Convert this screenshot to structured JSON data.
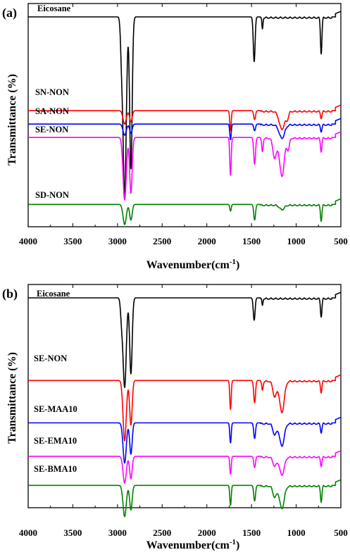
{
  "chart_data": [
    {
      "type": "line",
      "panel_label": "(a)",
      "xlabel": "Wavenumber(cm",
      "xlabel_sup": "-1",
      "xlabel_end": ")",
      "ylabel": "Transmittance (%)",
      "xlim": [
        4000,
        500
      ],
      "x_ticks": [
        "4000",
        "3500",
        "3000",
        "2500",
        "2000",
        "1500",
        "1000",
        "500"
      ],
      "series": [
        {
          "name": "Eicosane",
          "color": "#000000",
          "offset": 0.94,
          "bands": [
            [
              2920,
              0.8,
              18
            ],
            [
              2850,
              0.68,
              14
            ],
            [
              2955,
              0.15,
              12
            ],
            [
              1470,
              0.2,
              10
            ],
            [
              1378,
              0.05,
              6
            ],
            [
              720,
              0.16,
              8
            ]
          ]
        },
        {
          "name": "SN-NON",
          "color": "#ff0000",
          "offset": 0.52,
          "bands": [
            [
              2920,
              0.06,
              18
            ],
            [
              2850,
              0.05,
              14
            ],
            [
              1735,
              0.09,
              8
            ],
            [
              1465,
              0.04,
              10
            ],
            [
              1160,
              0.08,
              30
            ],
            [
              1100,
              0.03,
              15
            ],
            [
              720,
              0.03,
              8
            ]
          ]
        },
        {
          "name": "SA-NON",
          "color": "#0000ff",
          "offset": 0.46,
          "bands": [
            [
              2920,
              0.05,
              18
            ],
            [
              2850,
              0.04,
              14
            ],
            [
              1735,
              0.07,
              8
            ],
            [
              1465,
              0.03,
              10
            ],
            [
              1160,
              0.06,
              30
            ],
            [
              720,
              0.03,
              8
            ]
          ]
        },
        {
          "name": "SE-NON",
          "color": "#ff00ff",
          "offset": 0.4,
          "bands": [
            [
              2920,
              0.28,
              18
            ],
            [
              2850,
              0.25,
              14
            ],
            [
              1735,
              0.17,
              8
            ],
            [
              1465,
              0.12,
              10
            ],
            [
              1378,
              0.06,
              8
            ],
            [
              1240,
              0.09,
              20
            ],
            [
              1160,
              0.17,
              26
            ],
            [
              1090,
              0.05,
              14
            ],
            [
              720,
              0.06,
              8
            ]
          ]
        },
        {
          "name": "SD-NON",
          "color": "#008000",
          "offset": 0.1,
          "bands": [
            [
              2920,
              0.09,
              18
            ],
            [
              2850,
              0.07,
              14
            ],
            [
              1735,
              0.03,
              8
            ],
            [
              1465,
              0.07,
              10
            ],
            [
              1160,
              0.02,
              26
            ],
            [
              720,
              0.07,
              8
            ]
          ]
        }
      ]
    },
    {
      "type": "line",
      "panel_label": "(b)",
      "xlabel": "Wavenumber(cm",
      "xlabel_sup": "-1",
      "xlabel_end": ")",
      "ylabel": "Transmittance (%)",
      "xlim": [
        4000,
        500
      ],
      "x_ticks": [
        "4000",
        "3500",
        "3000",
        "2500",
        "2000",
        "1500",
        "1000",
        "500"
      ],
      "series": [
        {
          "name": "Eicosane",
          "color": "#000000",
          "offset": 0.94,
          "bands": [
            [
              2920,
              0.4,
              18
            ],
            [
              2850,
              0.34,
              14
            ],
            [
              2955,
              0.08,
              12
            ],
            [
              1470,
              0.1,
              10
            ],
            [
              1378,
              0.03,
              6
            ],
            [
              720,
              0.08,
              8
            ]
          ]
        },
        {
          "name": "SE-NON",
          "color": "#ff0000",
          "offset": 0.57,
          "bands": [
            [
              2920,
              0.27,
              18
            ],
            [
              2850,
              0.2,
              14
            ],
            [
              1735,
              0.13,
              8
            ],
            [
              1465,
              0.1,
              10
            ],
            [
              1378,
              0.04,
              8
            ],
            [
              1240,
              0.07,
              20
            ],
            [
              1160,
              0.14,
              26
            ],
            [
              720,
              0.05,
              8
            ]
          ]
        },
        {
          "name": "SE-MAA10",
          "color": "#0000ff",
          "offset": 0.38,
          "bands": [
            [
              2920,
              0.18,
              18
            ],
            [
              2850,
              0.14,
              14
            ],
            [
              1735,
              0.09,
              8
            ],
            [
              1465,
              0.07,
              10
            ],
            [
              1240,
              0.05,
              20
            ],
            [
              1160,
              0.1,
              26
            ],
            [
              720,
              0.04,
              8
            ]
          ]
        },
        {
          "name": "SE-EMA10",
          "color": "#ff00ff",
          "offset": 0.23,
          "bands": [
            [
              2920,
              0.12,
              18
            ],
            [
              2850,
              0.1,
              14
            ],
            [
              1735,
              0.08,
              8
            ],
            [
              1465,
              0.05,
              10
            ],
            [
              1240,
              0.04,
              20
            ],
            [
              1160,
              0.08,
              26
            ],
            [
              720,
              0.04,
              8
            ]
          ]
        },
        {
          "name": "SE-BMA10",
          "color": "#008000",
          "offset": 0.1,
          "bands": [
            [
              2920,
              0.14,
              18
            ],
            [
              2850,
              0.11,
              14
            ],
            [
              1735,
              0.09,
              8
            ],
            [
              1465,
              0.07,
              10
            ],
            [
              1240,
              0.05,
              20
            ],
            [
              1160,
              0.1,
              26
            ],
            [
              720,
              0.07,
              8
            ]
          ]
        }
      ]
    }
  ]
}
